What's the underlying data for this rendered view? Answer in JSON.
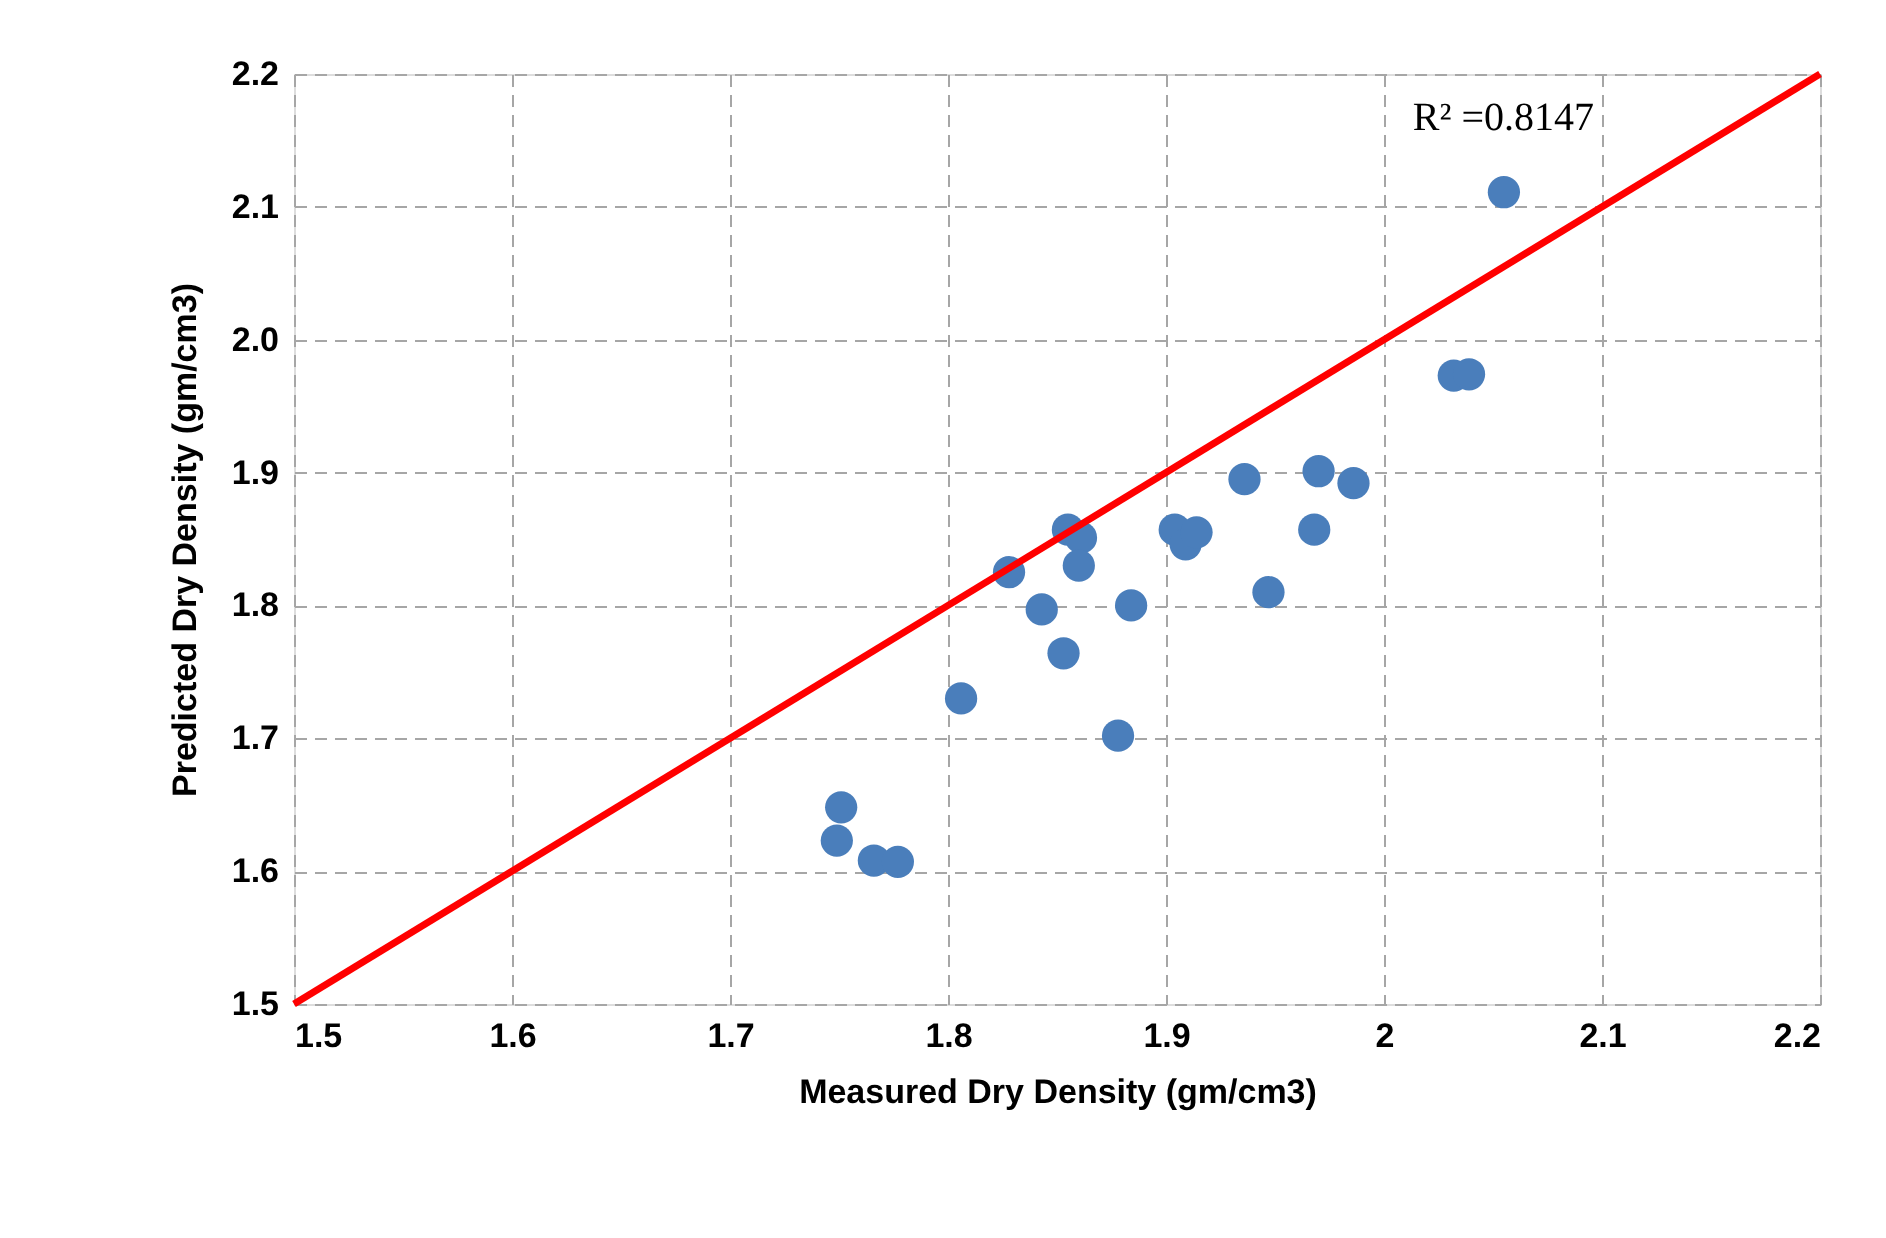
{
  "chart_data": {
    "type": "scatter",
    "xlabel": "Measured Dry Density (gm/cm3)",
    "ylabel": "Predicted Dry Density (gm/cm3)",
    "xlim": [
      1.5,
      2.2
    ],
    "ylim": [
      1.5,
      2.2
    ],
    "xticks": [
      1.5,
      1.6,
      1.7,
      1.8,
      1.9,
      {
        "value": 2.0,
        "label": "2"
      },
      2.1,
      2.2
    ],
    "yticks": [
      1.5,
      1.6,
      1.7,
      1.8,
      1.9,
      {
        "value": 2.0,
        "label": "2.0"
      },
      2.1,
      2.2
    ],
    "grid": true,
    "legend": false,
    "marker": "circle",
    "annotations": [
      "R² =0.8147"
    ],
    "series": [
      {
        "color": "#4a7ebb",
        "x": [
          1.749,
          1.751,
          1.766,
          1.777,
          1.806,
          1.828,
          1.843,
          1.855,
          1.861,
          1.86,
          1.853,
          1.878,
          1.884,
          1.904,
          1.909,
          1.914,
          1.936,
          1.947,
          1.968,
          1.97,
          1.986,
          2.032,
          2.039,
          2.055
        ],
        "values": [
          1.623,
          1.648,
          1.608,
          1.607,
          1.73,
          1.825,
          1.797,
          1.857,
          1.851,
          1.83,
          1.764,
          1.702,
          1.8,
          1.857,
          1.846,
          1.855,
          1.895,
          1.81,
          1.857,
          1.901,
          1.892,
          1.973,
          1.974,
          2.111
        ]
      },
      {
        "type": "line",
        "marker": "none",
        "color": "#ff0000",
        "x": [
          1.5,
          2.2
        ],
        "values": [
          1.5,
          2.2
        ]
      }
    ]
  }
}
